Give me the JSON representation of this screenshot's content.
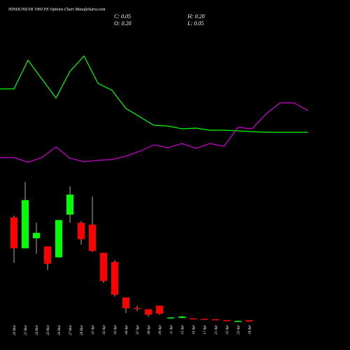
{
  "chart_data": [
    {
      "type": "candlestick",
      "title": "HINDUNILVR 1960  PE Options  Chart MunafaSutra.com",
      "info": [
        "C: 0.05",
        "H: 0.20",
        "O: 0.20",
        "L: 0.05"
      ],
      "categories": [
        "20 Mar",
        "21 Mar",
        "24 Mar",
        "25 Mar",
        "26 Mar",
        "27 Mar",
        "28 Mar",
        "01 Apr",
        "02 Apr",
        "03 Apr",
        "04 Apr",
        "07 Apr",
        "08 Apr",
        "09 Apr",
        "11 Apr",
        "15 Apr",
        "16 Apr",
        "17 Apr",
        "21 Apr",
        "22 Apr",
        "23 Apr",
        "24 Apr"
      ],
      "open": [
        11.5,
        8.1,
        9.2,
        8.3,
        7.1,
        11.8,
        10.9,
        10.7,
        7.6,
        6.6,
        2.7,
        1.55,
        1.4,
        1.8,
        0.45,
        0.45,
        0.4,
        0.35,
        0.3,
        0.2,
        0.1,
        0.2
      ],
      "high": [
        11.7,
        15.4,
        10.9,
        8.3,
        11.2,
        14.9,
        11.1,
        13.8,
        7.6,
        6.8,
        2.7,
        1.8,
        1.4,
        1.8,
        0.55,
        0.7,
        0.4,
        0.35,
        0.3,
        0.2,
        0.15,
        0.2
      ],
      "low": [
        6.5,
        8.1,
        7.5,
        5.7,
        7.1,
        10.9,
        8.5,
        7.7,
        4.3,
        2.8,
        1.0,
        1.2,
        0.6,
        0.8,
        0.4,
        0.4,
        0.3,
        0.3,
        0.2,
        0.1,
        0.1,
        0.05
      ],
      "close": [
        8.1,
        13.4,
        9.8,
        6.4,
        11.2,
        14.0,
        9.1,
        7.8,
        4.5,
        3.0,
        1.5,
        1.45,
        0.8,
        0.9,
        0.5,
        0.6,
        0.35,
        0.3,
        0.2,
        0.1,
        0.12,
        0.05
      ],
      "up_color": "#00ff00",
      "down_color": "#ff0000",
      "ylim": [
        0,
        16
      ]
    },
    {
      "type": "line",
      "series": [
        {
          "color": "#00ff00",
          "values": [
            133,
            133,
            174,
            147,
            120,
            158,
            180,
            141,
            131,
            105,
            93,
            81,
            80,
            76,
            77,
            74,
            74,
            73,
            72,
            71,
            71,
            71,
            71
          ]
        },
        {
          "color": "#cc00cc",
          "values": [
            35,
            35,
            28,
            35,
            50,
            34,
            29,
            31,
            32,
            37,
            44,
            53,
            49,
            55,
            48,
            55,
            51,
            78,
            76,
            97,
            113,
            113,
            102
          ]
        }
      ],
      "ylim": [
        0,
        200
      ]
    }
  ]
}
